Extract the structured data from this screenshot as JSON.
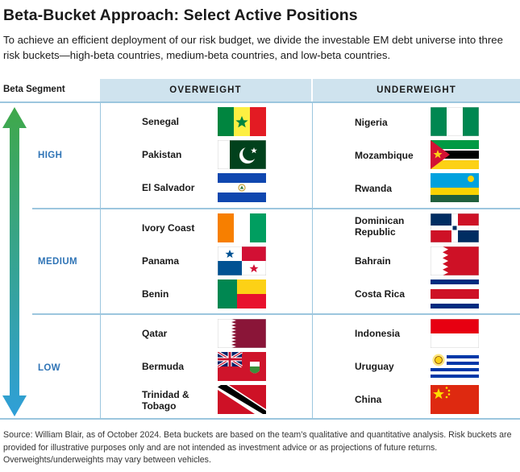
{
  "title": "Beta-Bucket Approach: Select Active Positions",
  "subtitle": "To achieve an efficient deployment of our risk budget, we divide the investable EM debt universe into three risk buckets—high-beta countries, medium-beta countries, and low-beta countries.",
  "table": {
    "segment_header": "Beta Segment",
    "overweight_header": "OVERWEIGHT",
    "underweight_header": "UNDERWEIGHT",
    "rows": [
      {
        "segment": "HIGH",
        "overweight": [
          "Senegal",
          "Pakistan",
          "El Salvador"
        ],
        "underweight": [
          "Nigeria",
          "Mozambique",
          "Rwanda"
        ]
      },
      {
        "segment": "MEDIUM",
        "overweight": [
          "Ivory Coast",
          "Panama",
          "Benin"
        ],
        "underweight": [
          "Dominican Republic",
          "Bahrain",
          "Costa Rica"
        ]
      },
      {
        "segment": "LOW",
        "overweight": [
          "Qatar",
          "Bermuda",
          "Trinidad & Tobago"
        ],
        "underweight": [
          "Indonesia",
          "Uruguay",
          "China"
        ]
      }
    ]
  },
  "arrow_colors": {
    "top": "#3fa84a",
    "bottom": "#2f9fd8"
  },
  "flag_icons": [
    "senegal-flag-icon",
    "pakistan-flag-icon",
    "el-salvador-flag-icon",
    "nigeria-flag-icon",
    "mozambique-flag-icon",
    "rwanda-flag-icon",
    "ivory-coast-flag-icon",
    "panama-flag-icon",
    "benin-flag-icon",
    "dominican-republic-flag-icon",
    "bahrain-flag-icon",
    "costa-rica-flag-icon",
    "qatar-flag-icon",
    "bermuda-flag-icon",
    "trinidad-tobago-flag-icon",
    "indonesia-flag-icon",
    "uruguay-flag-icon",
    "china-flag-icon"
  ],
  "footnote": "Source: William Blair, as of October 2024. Beta buckets are based on the team’s qualitative and quantitative analysis. Risk buckets are provided for illustrative purposes only and are not intended as investment advice or as projections of future returns. Overweights/underweights may vary between vehicles."
}
